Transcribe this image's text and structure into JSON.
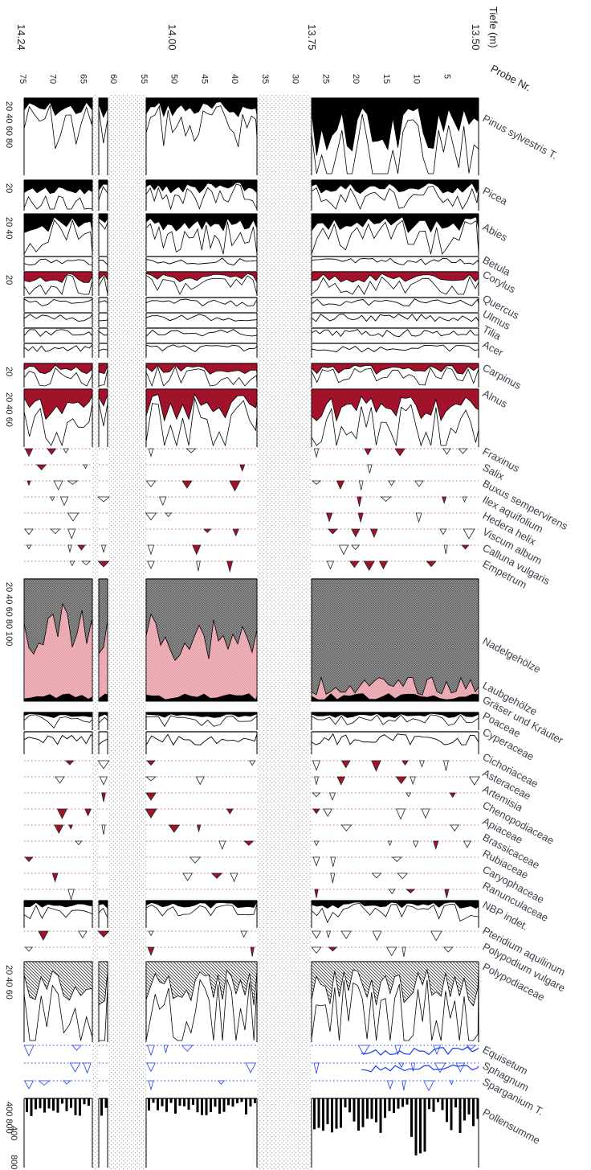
{
  "chart_data": {
    "type": "pollen-diagram",
    "header": {
      "depth_label": "Tiefe (m)",
      "sample_label": "Probe Nr."
    },
    "depth_ticks": [
      "14.24",
      "14.00",
      "13.75",
      "13.50"
    ],
    "sample_ticks": [
      "75",
      "70",
      "65",
      "60",
      "55",
      "50",
      "45",
      "40",
      "35",
      "30",
      "25",
      "20",
      "15",
      "10",
      "5"
    ],
    "gaps_samples": [
      [
        62,
        55
      ],
      [
        37,
        28
      ]
    ],
    "pollen_sum_ticks": [
      "400",
      "800"
    ],
    "taxa": [
      {
        "name": "Pinus sylvestris T.",
        "ticks": "20 40 60 80",
        "kind": "tree"
      },
      {
        "name": "Picea",
        "ticks": "20",
        "kind": "tree"
      },
      {
        "name": "Abies",
        "ticks": "20 40",
        "kind": "tree"
      },
      {
        "name": "Betula",
        "ticks": "",
        "kind": "small"
      },
      {
        "name": "Corylus",
        "ticks": "20",
        "kind": "red"
      },
      {
        "name": "Quercus",
        "ticks": "",
        "kind": "small"
      },
      {
        "name": "Ulmus",
        "ticks": "",
        "kind": "small"
      },
      {
        "name": "Tilia",
        "ticks": "",
        "kind": "small"
      },
      {
        "name": "Acer",
        "ticks": "",
        "kind": "small"
      },
      {
        "name": "Carpinus",
        "ticks": "20",
        "kind": "red"
      },
      {
        "name": "Alnus",
        "ticks": "20 40 60",
        "kind": "red"
      },
      {
        "name": "Fraxinus",
        "ticks": "",
        "kind": "dot"
      },
      {
        "name": "Salix",
        "ticks": "",
        "kind": "dot"
      },
      {
        "name": "Buxus sempervirens",
        "ticks": "",
        "kind": "dot"
      },
      {
        "name": "Ilex aquifolium",
        "ticks": "",
        "kind": "dot"
      },
      {
        "name": "Hedera helix",
        "ticks": "",
        "kind": "dot"
      },
      {
        "name": "Viscum album",
        "ticks": "",
        "kind": "dot"
      },
      {
        "name": "Calluna vulgaris",
        "ticks": "",
        "kind": "dot"
      },
      {
        "name": "Empetrum",
        "ticks": "",
        "kind": "dot"
      },
      {
        "name": "Nadelgehölze",
        "ticks": "20 40 60 80 100",
        "kind": "summary"
      },
      {
        "name": "Laubgehölze",
        "ticks": "",
        "kind": "label"
      },
      {
        "name": "Gräser und Kräuter",
        "ticks": "",
        "kind": "label"
      },
      {
        "name": "Poaceae",
        "ticks": "",
        "kind": "black"
      },
      {
        "name": "Cyperaceae",
        "ticks": "",
        "kind": "small"
      },
      {
        "name": "Cichoriaceae",
        "ticks": "",
        "kind": "dot"
      },
      {
        "name": "Asteraceae",
        "ticks": "",
        "kind": "dot"
      },
      {
        "name": "Artemisia",
        "ticks": "",
        "kind": "dot"
      },
      {
        "name": "Chenopodiaceae",
        "ticks": "",
        "kind": "dot"
      },
      {
        "name": "Apiaceae",
        "ticks": "",
        "kind": "dot"
      },
      {
        "name": "Brassicaceae",
        "ticks": "",
        "kind": "dot"
      },
      {
        "name": "Rubiaceae",
        "ticks": "",
        "kind": "dot"
      },
      {
        "name": "Caryophaceae",
        "ticks": "",
        "kind": "dot"
      },
      {
        "name": "Ranunculaceae",
        "ticks": "",
        "kind": "dot"
      },
      {
        "name": "NBP indet.",
        "ticks": "",
        "kind": "black"
      },
      {
        "name": "Pteridium aquilinum",
        "ticks": "",
        "kind": "dot"
      },
      {
        "name": "Polypodium vulgare",
        "ticks": "",
        "kind": "dot"
      },
      {
        "name": "Polypodiaceae",
        "ticks": "20 40 60",
        "kind": "hatch"
      },
      {
        "name": "Equisetum",
        "ticks": "",
        "kind": "blue"
      },
      {
        "name": "Sphagnum",
        "ticks": "",
        "kind": "blue"
      },
      {
        "name": "Sparganium T.",
        "ticks": "",
        "kind": "blue"
      },
      {
        "name": "Pollensumme",
        "ticks": "400 800",
        "kind": "bars"
      }
    ],
    "colors": {
      "black": "#000000",
      "red": "#a3122b",
      "pink": "#eeb1b8",
      "grey": "#8c8c8c",
      "blue": "#1f3cf0",
      "text": "#3a3f4a"
    }
  }
}
